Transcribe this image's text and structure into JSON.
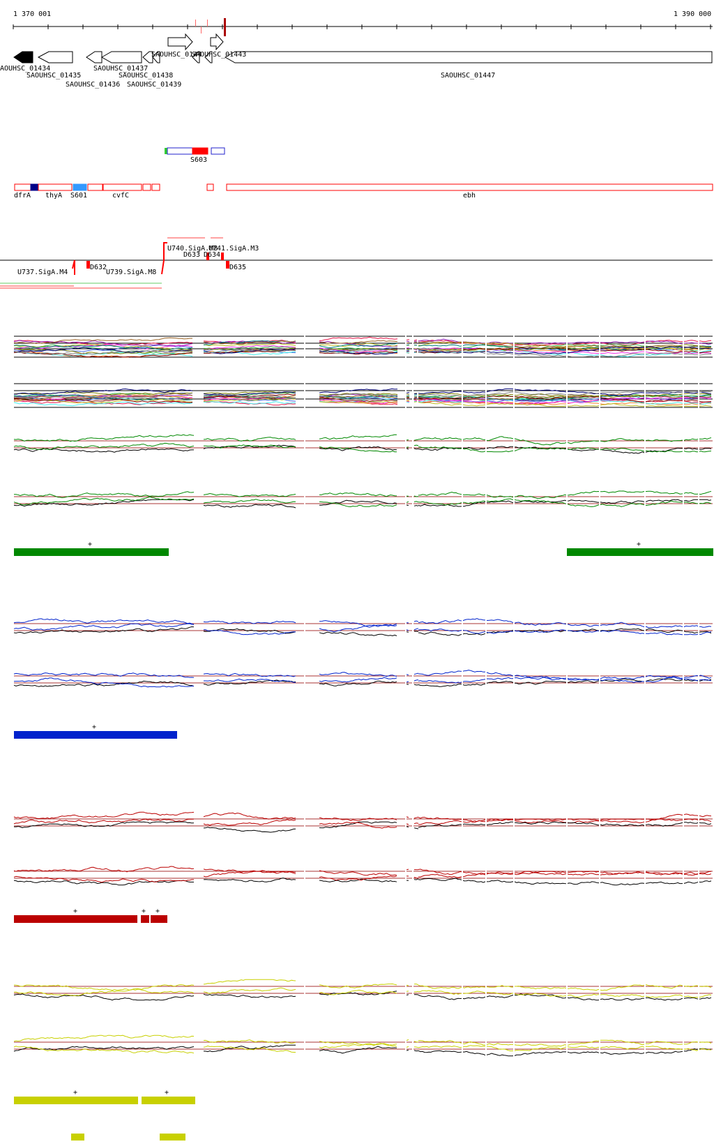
{
  "coordinates": {
    "start_label": "1 370 001",
    "end_label": "1 390 000"
  },
  "genes": [
    {
      "label": "AOUHSC_01434",
      "strand": "-",
      "filled": true
    },
    {
      "label": "SAOUHSC_01435",
      "strand": "-",
      "filled": false
    },
    {
      "label": "SAOUHSC_01436",
      "strand": "-",
      "filled": false
    },
    {
      "label": "SAOUHSC_01437",
      "strand": "-",
      "filled": false
    },
    {
      "label": "SAOUHSC_01438",
      "strand": "-",
      "filled": false
    },
    {
      "label": "SAOUHSC_01439",
      "strand": "-",
      "filled": false
    },
    {
      "label": "SAOUHSC_0144",
      "strand": "+",
      "filled": false
    },
    {
      "label": "SAOUHSC_01443",
      "strand": "+",
      "filled": false
    },
    {
      "label": "SAOUHSC_01447",
      "strand": "-",
      "filled": false
    }
  ],
  "annotations_upper": [
    {
      "label": "S603"
    }
  ],
  "annotations_lower": [
    {
      "label": "dfrA"
    },
    {
      "label": "thyA"
    },
    {
      "label": "S601"
    },
    {
      "label": "cvfC"
    },
    {
      "label": "ebh"
    }
  ],
  "regulatory": [
    {
      "label": "U737.SigA.M4"
    },
    {
      "label": "D632"
    },
    {
      "label": "U739.SigA.M8"
    },
    {
      "label": "U740.SigA.M8"
    },
    {
      "label": "U741.SigA.M3"
    },
    {
      "label": "D633"
    },
    {
      "label": "D634"
    },
    {
      "label": "D635"
    }
  ],
  "colors": {
    "axis": "#000000",
    "feature_outline": "#ff0000",
    "green": "#008800",
    "blue": "#0022cc",
    "red": "#bb0000",
    "yellow": "#c8d000",
    "dark_blue": "#000088",
    "light_blue": "#3399ff",
    "baseline_red": "#aa3333"
  },
  "segments": [
    {
      "sign": "+"
    },
    {
      "sign": "+"
    },
    {
      "sign": "+"
    },
    {
      "sign": "+"
    },
    {
      "sign": "+"
    },
    {
      "sign": "+"
    },
    {
      "sign": "+"
    },
    {
      "sign": "+"
    },
    {
      "sign": "-"
    },
    {
      "sign": "-"
    }
  ]
}
